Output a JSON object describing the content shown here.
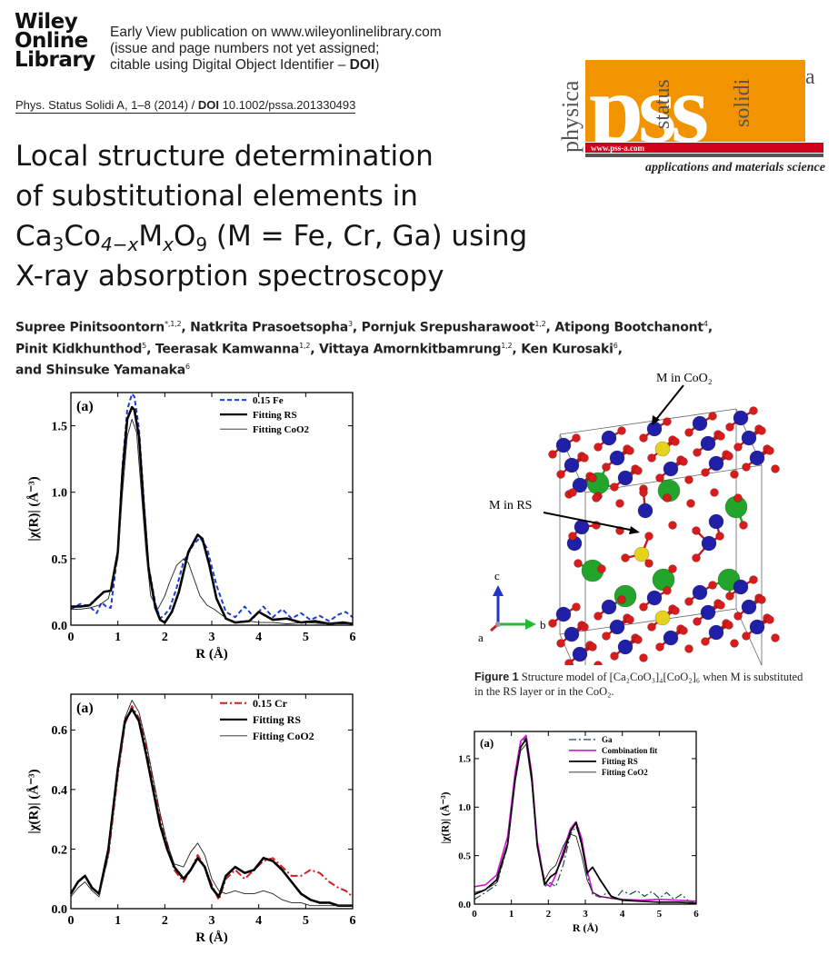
{
  "publisher": {
    "logo_lines": [
      "Wiley",
      "Online",
      "Library"
    ],
    "early_view_line1": "Early View publication on www.wileyonlinelibrary.com",
    "early_view_line2": "(issue and page numbers not yet assigned;",
    "early_view_line3": "citable using Digital Object Identifier – ",
    "early_view_doi": "DOI",
    "early_view_end": ")"
  },
  "journal_logo": {
    "side_words": [
      "physica",
      "status",
      "solidi"
    ],
    "letters": "pss",
    "suffix": "a",
    "url": "www.pss-a.com",
    "tagline": "applications and materials science",
    "colors": {
      "orange": "#f29400",
      "red": "#d0021b",
      "gray": "#555555"
    }
  },
  "citation": {
    "journal": "Phys. Status Solidi A, 1–8 (2014) / ",
    "doi_label": "DOI",
    "doi_value": " 10.1002/pssa.201330493"
  },
  "title": {
    "line1": "Local structure determination",
    "line2": "of substitutional elements in",
    "line3_pre": "Ca",
    "line3_sub1": "3",
    "line3_mid": "Co",
    "line3_sub2": "4−x",
    "line3_m": "M",
    "line3_sub3": "x",
    "line3_o": "O",
    "line3_sub4": "9",
    "line3_post": " (M = Fe, Cr, Ga) using",
    "line4": "X-ray absorption spectroscopy"
  },
  "authors": {
    "a1": "Supree Pinitsoontorn",
    "a1_sup": "*,1,2",
    "a2": ", Natkrita Prasoetsopha",
    "a2_sup": "3",
    "a3": ", Pornjuk Srepusharawoot",
    "a3_sup": "1,2",
    "a4": ", Atipong Bootchanont",
    "a4_sup": "4",
    "a4_end": ",",
    "a5": "Pinit Kidkhunthod",
    "a5_sup": "5",
    "a6": ", Teerasak Kamwanna",
    "a6_sup": "1,2",
    "a7": ", Vittaya Amornkitbamrung",
    "a7_sup": "1,2",
    "a8": ", Ken Kurosaki",
    "a8_sup": "6",
    "a8_end": ",",
    "a9": "and Shinsuke Yamanaka",
    "a9_sup": "6"
  },
  "figure1": {
    "label_m_coo2": "M in CoO₂",
    "label_m_rs": "M in RS",
    "axis_c": "c",
    "axis_b": "b",
    "axis_a": "a",
    "colors": {
      "co": "#1f1fa8",
      "o": "#d81b1b",
      "ca": "#22a52a",
      "m": "#e6d21a"
    },
    "caption_label": "Figure 1",
    "caption_text": " Structure model of [Ca₂CoO₃]₄[CoO₂]₆ when M is substituted in the RS layer or in the CoO₂."
  },
  "chart_data": [
    {
      "type": "line",
      "panel_label": "(a)",
      "xlabel": "R (Å)",
      "ylabel": "|χ(R)| (Å⁻³)",
      "xlim": [
        0,
        6
      ],
      "ylim": [
        0,
        1.75
      ],
      "xticks": [
        0,
        1,
        2,
        3,
        4,
        5,
        6
      ],
      "yticks": [
        0.0,
        0.5,
        1.0,
        1.5
      ],
      "ytick_labels": [
        "0.0",
        "0.5",
        "1.0",
        "1.5"
      ],
      "legend_position": "top-right",
      "series": [
        {
          "name": "0.15 Fe",
          "color": "#1c3fd1",
          "style": "dashed",
          "width": 2,
          "x": [
            0,
            0.2,
            0.4,
            0.55,
            0.65,
            0.75,
            0.85,
            1.0,
            1.1,
            1.2,
            1.3,
            1.35,
            1.45,
            1.55,
            1.65,
            1.8,
            1.9,
            2.0,
            2.1,
            2.25,
            2.4,
            2.6,
            2.75,
            2.9,
            3.1,
            3.3,
            3.5,
            3.7,
            3.9,
            4.1,
            4.3,
            4.5,
            4.7,
            4.9,
            5.1,
            5.3,
            5.5,
            5.7,
            5.85,
            6.0
          ],
          "y": [
            0.12,
            0.16,
            0.14,
            0.09,
            0.17,
            0.14,
            0.13,
            0.55,
            1.2,
            1.62,
            1.74,
            1.72,
            1.48,
            0.95,
            0.45,
            0.16,
            0.05,
            0.08,
            0.12,
            0.28,
            0.48,
            0.6,
            0.66,
            0.58,
            0.3,
            0.1,
            0.06,
            0.14,
            0.06,
            0.14,
            0.06,
            0.12,
            0.05,
            0.09,
            0.04,
            0.07,
            0.03,
            0.08,
            0.1,
            0.06
          ]
        },
        {
          "name": "Fitting RS",
          "color": "#000000",
          "style": "solid",
          "width": 2.6,
          "x": [
            0,
            0.2,
            0.4,
            0.55,
            0.7,
            0.85,
            1.0,
            1.1,
            1.2,
            1.3,
            1.35,
            1.45,
            1.55,
            1.65,
            1.8,
            1.9,
            2.0,
            2.15,
            2.3,
            2.5,
            2.7,
            2.8,
            2.95,
            3.1,
            3.3,
            3.5,
            3.8,
            4.0,
            4.3,
            4.6,
            4.9,
            5.2,
            5.5,
            5.8,
            6.0
          ],
          "y": [
            0.14,
            0.14,
            0.15,
            0.2,
            0.25,
            0.26,
            0.55,
            1.15,
            1.55,
            1.64,
            1.62,
            1.42,
            0.9,
            0.43,
            0.13,
            0.04,
            0.02,
            0.1,
            0.25,
            0.55,
            0.68,
            0.65,
            0.45,
            0.2,
            0.05,
            0.02,
            0.03,
            0.1,
            0.04,
            0.05,
            0.02,
            0.03,
            0.01,
            0.02,
            0.01
          ]
        },
        {
          "name": "Fitting CoO2",
          "color": "#222222",
          "style": "solid",
          "width": 0.9,
          "x": [
            0,
            0.2,
            0.4,
            0.6,
            0.8,
            1.0,
            1.1,
            1.2,
            1.3,
            1.4,
            1.5,
            1.6,
            1.7,
            1.85,
            2.0,
            2.1,
            2.25,
            2.4,
            2.5,
            2.6,
            2.75,
            2.9,
            3.05,
            3.2,
            3.4,
            3.6,
            3.8,
            4.0,
            4.3,
            4.6,
            5.0,
            5.4,
            5.8,
            6.0
          ],
          "y": [
            0.12,
            0.12,
            0.13,
            0.15,
            0.2,
            0.5,
            1.0,
            1.42,
            1.55,
            1.45,
            1.0,
            0.55,
            0.22,
            0.12,
            0.22,
            0.32,
            0.45,
            0.5,
            0.47,
            0.37,
            0.22,
            0.15,
            0.12,
            0.08,
            0.03,
            0.02,
            0.03,
            0.02,
            0.02,
            0.01,
            0.02,
            0.01,
            0.01,
            0.01
          ]
        }
      ]
    },
    {
      "type": "line",
      "panel_label": "(a)",
      "xlabel": "R (Å)",
      "ylabel": "|χ(R)| (Å⁻³)",
      "xlim": [
        0,
        6
      ],
      "ylim": [
        0,
        0.72
      ],
      "xticks": [
        0,
        1,
        2,
        3,
        4,
        5,
        6
      ],
      "yticks": [
        0.0,
        0.2,
        0.4,
        0.6
      ],
      "ytick_labels": [
        "0.0",
        "0.2",
        "0.4",
        "0.6"
      ],
      "legend_position": "top-right",
      "series": [
        {
          "name": "0.15 Cr",
          "color": "#d11f1f",
          "style": "dashdot",
          "width": 2,
          "x": [
            0,
            0.15,
            0.3,
            0.45,
            0.6,
            0.8,
            1.0,
            1.15,
            1.3,
            1.45,
            1.6,
            1.75,
            1.9,
            2.05,
            2.2,
            2.4,
            2.55,
            2.7,
            2.85,
            3.0,
            3.15,
            3.3,
            3.5,
            3.7,
            3.9,
            4.1,
            4.3,
            4.5,
            4.7,
            4.9,
            5.1,
            5.3,
            5.5,
            5.7,
            5.85,
            6.0
          ],
          "y": [
            0.05,
            0.09,
            0.11,
            0.07,
            0.05,
            0.18,
            0.45,
            0.62,
            0.68,
            0.64,
            0.55,
            0.42,
            0.3,
            0.22,
            0.13,
            0.09,
            0.13,
            0.18,
            0.14,
            0.08,
            0.03,
            0.1,
            0.13,
            0.1,
            0.13,
            0.16,
            0.17,
            0.14,
            0.11,
            0.11,
            0.13,
            0.12,
            0.09,
            0.07,
            0.06,
            0.04
          ]
        },
        {
          "name": "Fitting RS",
          "color": "#000000",
          "style": "solid",
          "width": 2.6,
          "x": [
            0,
            0.15,
            0.3,
            0.45,
            0.6,
            0.8,
            1.0,
            1.15,
            1.3,
            1.45,
            1.6,
            1.75,
            1.9,
            2.05,
            2.2,
            2.4,
            2.55,
            2.7,
            2.85,
            3.0,
            3.15,
            3.3,
            3.5,
            3.7,
            3.9,
            4.1,
            4.3,
            4.5,
            4.7,
            4.9,
            5.1,
            5.3,
            5.5,
            5.7,
            5.85,
            6.0
          ],
          "y": [
            0.05,
            0.09,
            0.11,
            0.07,
            0.05,
            0.2,
            0.47,
            0.63,
            0.67,
            0.63,
            0.52,
            0.4,
            0.28,
            0.2,
            0.14,
            0.1,
            0.13,
            0.17,
            0.14,
            0.07,
            0.04,
            0.11,
            0.14,
            0.12,
            0.13,
            0.17,
            0.16,
            0.13,
            0.09,
            0.05,
            0.03,
            0.02,
            0.02,
            0.01,
            0.01,
            0.01
          ]
        },
        {
          "name": "Fitting CoO2",
          "color": "#222222",
          "style": "solid",
          "width": 0.9,
          "x": [
            0,
            0.15,
            0.3,
            0.45,
            0.6,
            0.8,
            1.0,
            1.15,
            1.3,
            1.45,
            1.6,
            1.75,
            1.9,
            2.05,
            2.2,
            2.4,
            2.55,
            2.7,
            2.85,
            3.0,
            3.15,
            3.3,
            3.5,
            3.7,
            3.9,
            4.1,
            4.3,
            4.5,
            4.7,
            4.9,
            5.1,
            5.3,
            5.5,
            5.7,
            6.0
          ],
          "y": [
            0.04,
            0.07,
            0.09,
            0.06,
            0.04,
            0.18,
            0.45,
            0.64,
            0.7,
            0.66,
            0.56,
            0.44,
            0.32,
            0.22,
            0.15,
            0.14,
            0.19,
            0.22,
            0.18,
            0.1,
            0.06,
            0.05,
            0.06,
            0.05,
            0.05,
            0.06,
            0.05,
            0.03,
            0.02,
            0.02,
            0.01,
            0.01,
            0.01,
            0.01,
            0.01
          ]
        }
      ]
    },
    {
      "type": "line",
      "panel_label": "(a)",
      "xlabel": "R (Å)",
      "ylabel": "|χ(R)| (Å⁻³)",
      "xlim": [
        0,
        6
      ],
      "ylim": [
        0,
        1.78
      ],
      "xticks": [
        0,
        1,
        2,
        3,
        4,
        5,
        6
      ],
      "yticks": [
        0.0,
        0.5,
        1.0,
        1.5
      ],
      "ytick_labels": [
        "0.0",
        "0.5",
        "1.0",
        "1.5"
      ],
      "legend_position": "top-right",
      "series": [
        {
          "name": "Ga",
          "color": "#1a4a4a",
          "style": "dashdot",
          "width": 1.2,
          "x": [
            0,
            0.3,
            0.6,
            0.9,
            1.1,
            1.25,
            1.4,
            1.55,
            1.7,
            1.9,
            2.05,
            2.2,
            2.4,
            2.6,
            2.75,
            2.9,
            3.05,
            3.2,
            3.4,
            3.6,
            3.8,
            4.0,
            4.2,
            4.4,
            4.6,
            4.8,
            5.0,
            5.2,
            5.4,
            5.6,
            5.8,
            6.0
          ],
          "y": [
            0.05,
            0.12,
            0.2,
            0.6,
            1.3,
            1.66,
            1.72,
            1.3,
            0.6,
            0.18,
            0.22,
            0.18,
            0.4,
            0.72,
            0.8,
            0.65,
            0.3,
            0.1,
            0.07,
            0.12,
            0.05,
            0.14,
            0.1,
            0.14,
            0.08,
            0.13,
            0.06,
            0.12,
            0.05,
            0.1,
            0.03,
            0.02
          ]
        },
        {
          "name": "Combination fit",
          "color": "#d414d4",
          "style": "solid",
          "width": 1.6,
          "x": [
            0,
            0.3,
            0.6,
            0.9,
            1.1,
            1.25,
            1.4,
            1.55,
            1.7,
            1.9,
            2.05,
            2.2,
            2.4,
            2.6,
            2.75,
            2.9,
            3.05,
            3.2,
            3.4,
            3.7,
            4.0,
            4.5,
            5.0,
            5.5,
            6.0
          ],
          "y": [
            0.18,
            0.2,
            0.3,
            0.7,
            1.35,
            1.68,
            1.74,
            1.35,
            0.65,
            0.22,
            0.18,
            0.3,
            0.55,
            0.78,
            0.85,
            0.68,
            0.35,
            0.12,
            0.08,
            0.06,
            0.05,
            0.04,
            0.05,
            0.04,
            0.03
          ]
        },
        {
          "name": "Fitting RS",
          "color": "#000000",
          "style": "solid",
          "width": 1.8,
          "x": [
            0,
            0.3,
            0.6,
            0.9,
            1.1,
            1.25,
            1.4,
            1.55,
            1.7,
            1.9,
            2.05,
            2.2,
            2.4,
            2.6,
            2.75,
            2.9,
            3.05,
            3.2,
            3.4,
            3.7,
            4.0,
            4.5,
            5.0,
            5.5,
            6.0
          ],
          "y": [
            0.1,
            0.15,
            0.25,
            0.62,
            1.28,
            1.62,
            1.7,
            1.3,
            0.6,
            0.2,
            0.28,
            0.32,
            0.5,
            0.75,
            0.84,
            0.62,
            0.32,
            0.38,
            0.25,
            0.08,
            0.04,
            0.03,
            0.02,
            0.02,
            0.01
          ]
        },
        {
          "name": "Fitting CoO2",
          "color": "#222222",
          "style": "solid",
          "width": 0.9,
          "x": [
            0,
            0.3,
            0.6,
            0.9,
            1.1,
            1.25,
            1.4,
            1.55,
            1.7,
            1.9,
            2.05,
            2.2,
            2.4,
            2.6,
            2.75,
            2.9,
            3.05,
            3.2,
            3.4,
            3.7,
            4.0,
            4.5,
            5.0,
            5.5,
            6.0
          ],
          "y": [
            0.12,
            0.15,
            0.22,
            0.6,
            1.25,
            1.58,
            1.65,
            1.25,
            0.58,
            0.25,
            0.35,
            0.4,
            0.6,
            0.72,
            0.7,
            0.5,
            0.25,
            0.12,
            0.08,
            0.06,
            0.04,
            0.03,
            0.02,
            0.02,
            0.01
          ]
        }
      ]
    }
  ]
}
